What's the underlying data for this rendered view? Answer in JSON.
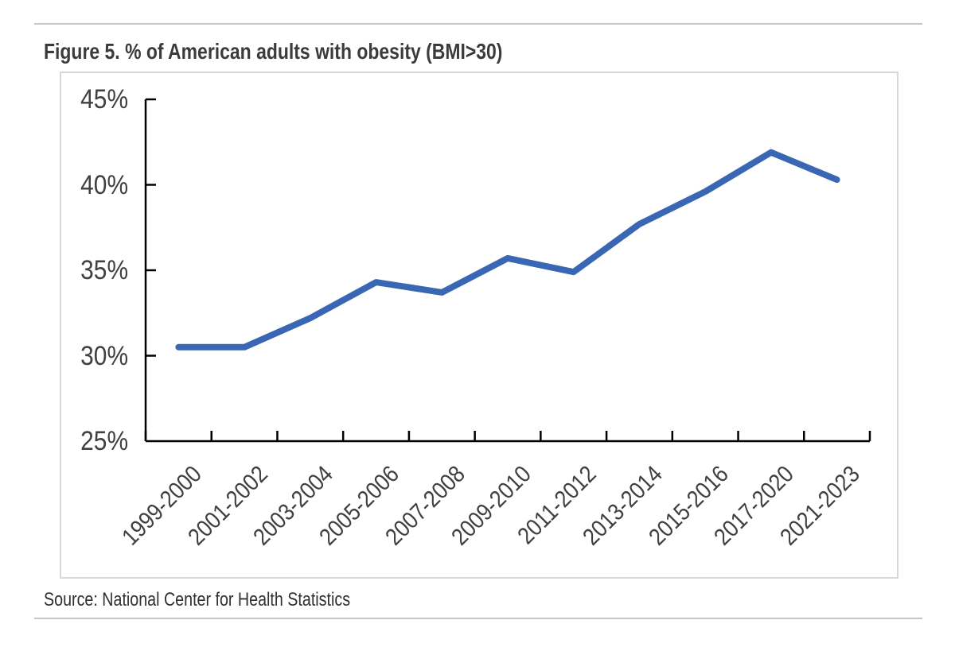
{
  "figure": {
    "title": "Figure 5. % of American adults with obesity (BMI>30)",
    "source": "Source: National Center for Health Statistics"
  },
  "colors": {
    "line": "#3A67B3",
    "axis": "#000000",
    "tick_label_text": "#404040",
    "title_text": "#3B3B3D",
    "source_text": "#303030",
    "chart_border": "#D8D8D8",
    "rule": "#C6C6C6",
    "background": "#FFFFFF"
  },
  "chart_data": {
    "type": "line",
    "title": "Figure 5. % of American adults with obesity (BMI>30)",
    "categories": [
      "1999-2000",
      "2001-2002",
      "2003-2004",
      "2005-2006",
      "2007-2008",
      "2009-2010",
      "2011-2012",
      "2013-2014",
      "2015-2016",
      "2017-2020",
      "2021-2023"
    ],
    "series": [
      {
        "name": "% of American adults with obesity (BMI>30)",
        "values": [
          30.5,
          30.5,
          32.2,
          34.3,
          33.7,
          35.7,
          34.9,
          37.7,
          39.6,
          41.9,
          40.3
        ]
      }
    ],
    "xlabel": "",
    "ylabel": "",
    "ylim": [
      25,
      45
    ],
    "yticks": [
      25,
      30,
      35,
      40,
      45
    ],
    "ytick_suffix": "%",
    "x_label_rotation_deg": -45,
    "grid": false,
    "legend": "none",
    "source": "Source: National Center for Health Statistics"
  }
}
